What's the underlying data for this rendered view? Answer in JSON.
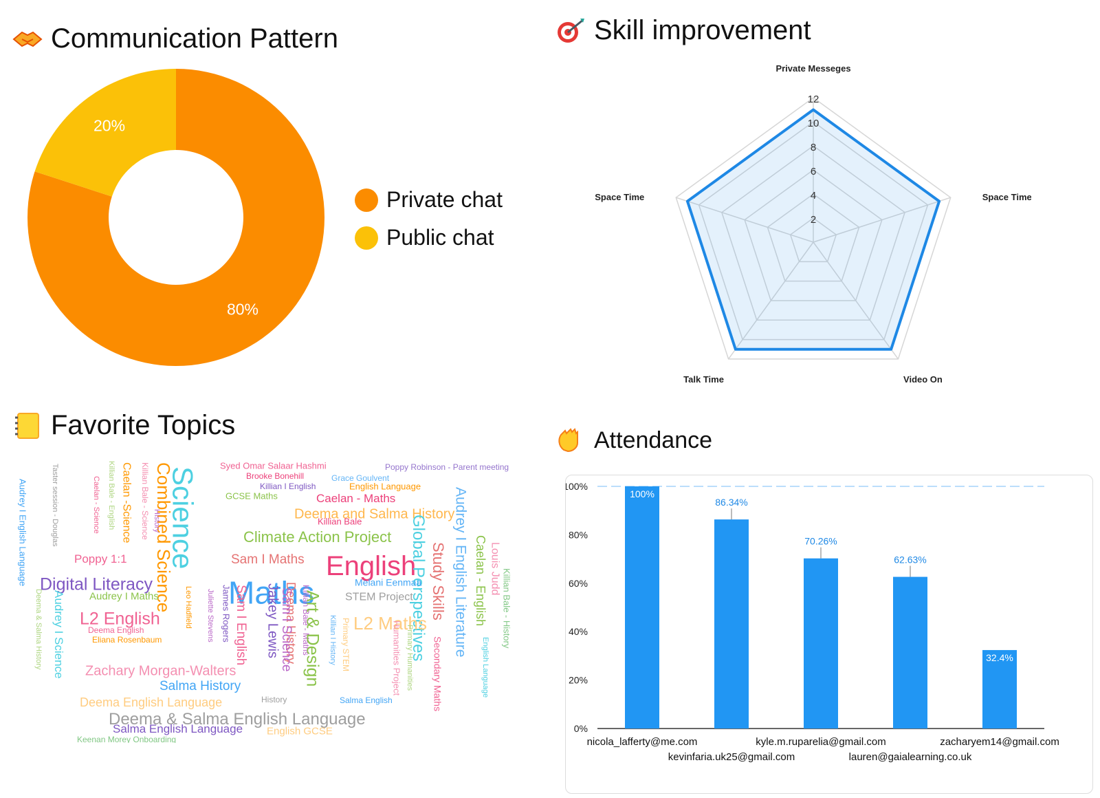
{
  "panels": {
    "communication": {
      "title": "Communication Pattern",
      "icon": "handshake-icon"
    },
    "skill": {
      "title": "Skill improvement",
      "icon": "target-icon"
    },
    "topics": {
      "title": "Favorite Topics",
      "icon": "notebook-icon"
    },
    "attendance": {
      "title": "Attendance",
      "icon": "waving-hand-icon"
    }
  },
  "colors": {
    "private": "#FB8C00",
    "public": "#FBC108",
    "accent": "#1E88E5",
    "bar": "#2196F3"
  },
  "chart_data": [
    {
      "type": "pie",
      "variant": "donut",
      "title": "Communication Pattern",
      "labels": [
        "Private chat",
        "Public chat"
      ],
      "values": [
        80,
        20
      ],
      "data_labels": [
        "80%",
        "20%"
      ],
      "legend": "right"
    },
    {
      "type": "radar",
      "title": "Skill improvement",
      "axes": [
        "Private Messeges",
        "Space Time",
        "Video On",
        "Talk Time",
        "Space Time"
      ],
      "values": [
        11,
        11,
        11,
        11,
        11
      ],
      "range": [
        0,
        12
      ],
      "ticks": [
        2,
        4,
        6,
        8,
        10,
        12
      ]
    },
    {
      "type": "wordcloud",
      "title": "Favorite Topics",
      "words": [
        "Syed Omar Salaar Hashmi",
        "Poppy Robinson - Parent meeting",
        "Brooke Bonehill",
        "Grace Goulvent",
        "Killian I English",
        "English Language",
        "GCSE Maths",
        "Caelan - Maths",
        "Deema and Salma History",
        "Killian Bale",
        "Climate Action Project",
        "Sam I Maths",
        "English",
        "Maths",
        "Science",
        "Combined Science",
        "Global Perspectives",
        "Study Skills",
        "Audrey I English Literature",
        "Caelan - English",
        "Louis Judd",
        "Killian Bale - History",
        "English Language",
        "Poppy 1:1",
        "Digital Literacy",
        "Melani Eenmaa",
        "STEM Project",
        "Audrey I Maths",
        "L2 English",
        "L2 Maths",
        "Deema English",
        "Eliana Rosenbaum",
        "Zachary Morgan-Walters",
        "Salma History",
        "Deema English Language",
        "History",
        "Salma English",
        "Deema & Salma English Language",
        "Salma English Language",
        "English GCSE",
        "Keenan Morey Onboarding",
        "Audrey I English Language",
        "Taster session - Douglas",
        "Caelan - Science",
        "Killian Bale - English",
        "Caelan -Science",
        "Killian Bale - Science",
        "History",
        "Audrey I Science",
        "Deema & Salma History",
        "Leo Hadfield",
        "Juliette Stevens",
        "James Rogers",
        "Sam I English",
        "Jakey Lewis",
        "Deema History",
        "Sam I Science",
        "Killian Bale - Maths",
        "Art & Design",
        "Killian I History",
        "Primary STEM",
        "Primary Humanities",
        "Humanities Project",
        "Secondary Maths"
      ]
    },
    {
      "type": "bar",
      "title": "Attendance",
      "categories": [
        "nicola_lafferty@me.com",
        "kevinfaria.uk25@gmail.com",
        "kyle.m.ruparelia@gmail.com",
        "lauren@gaialearning.co.uk",
        "zacharyem14@gmail.com"
      ],
      "values": [
        100,
        86.34,
        70.26,
        62.63,
        32.4
      ],
      "data_labels": [
        "100%",
        "86.34%",
        "70.26%",
        "62.63%",
        "32.4%"
      ],
      "ylim": [
        0,
        100
      ],
      "yticks": [
        "0%",
        "20%",
        "40%",
        "60%",
        "80%",
        "100%"
      ]
    }
  ],
  "wordcloud_colors": [
    "#f06292",
    "#9575cd",
    "#4dd0e1",
    "#ff9800",
    "#8bc34a",
    "#26c6da",
    "#ec407a",
    "#7e57c2",
    "#ffb74d",
    "#42a5f5",
    "#9e9e9e",
    "#e57373",
    "#aed581",
    "#ba68c8",
    "#64b5f6",
    "#f48fb1",
    "#81c784",
    "#ffcc80"
  ]
}
